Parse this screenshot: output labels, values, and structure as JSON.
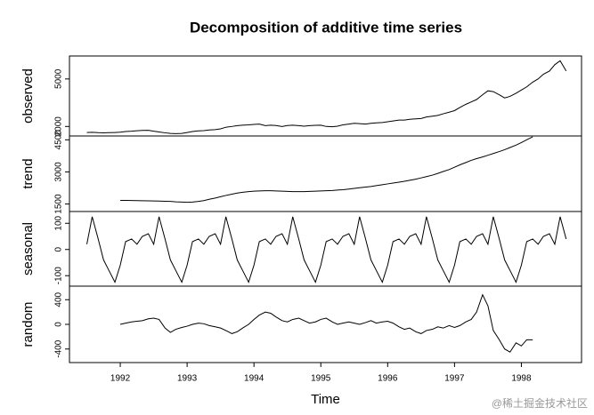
{
  "watermark": "@稀土掘金技术社区",
  "chart_data": [
    {
      "type": "line",
      "title": "Decomposition of additive time series",
      "ylabel": "observed",
      "color": "#000000",
      "xlim": [
        1991.24,
        1998.9
      ],
      "ylim": [
        1400,
        6450
      ],
      "yticks": [
        2000,
        5000
      ],
      "x": [
        1991.5,
        1991.58,
        1991.67,
        1991.75,
        1991.83,
        1991.92,
        1992,
        1992.08,
        1992.17,
        1992.25,
        1992.33,
        1992.42,
        1992.5,
        1992.58,
        1992.67,
        1992.75,
        1992.83,
        1992.92,
        1993,
        1993.08,
        1993.17,
        1993.25,
        1993.33,
        1993.42,
        1993.5,
        1993.58,
        1993.67,
        1993.75,
        1993.83,
        1993.92,
        1994,
        1994.08,
        1994.17,
        1994.25,
        1994.33,
        1994.42,
        1994.5,
        1994.58,
        1994.67,
        1994.75,
        1994.83,
        1994.92,
        1995,
        1995.08,
        1995.17,
        1995.25,
        1995.33,
        1995.42,
        1995.5,
        1995.58,
        1995.67,
        1995.75,
        1995.83,
        1995.92,
        1996,
        1996.08,
        1996.17,
        1996.25,
        1996.33,
        1996.42,
        1996.5,
        1996.58,
        1996.67,
        1996.75,
        1996.83,
        1996.92,
        1997,
        1997.08,
        1997.17,
        1997.25,
        1997.33,
        1997.42,
        1997.5,
        1997.58,
        1997.67,
        1997.75,
        1997.83,
        1997.92,
        1998,
        1998.08,
        1998.17,
        1998.25,
        1998.33,
        1998.42,
        1998.5,
        1998.58,
        1998.67
      ],
      "values": [
        1620,
        1630,
        1610,
        1600,
        1610,
        1620,
        1640,
        1680,
        1700,
        1730,
        1750,
        1760,
        1700,
        1650,
        1600,
        1560,
        1550,
        1560,
        1620,
        1680,
        1720,
        1740,
        1780,
        1800,
        1850,
        1950,
        2000,
        2050,
        2080,
        2100,
        2130,
        2150,
        2050,
        2080,
        2060,
        2000,
        2060,
        2080,
        2050,
        2020,
        2050,
        2070,
        2080,
        2000,
        1980,
        2020,
        2100,
        2150,
        2200,
        2180,
        2150,
        2200,
        2230,
        2250,
        2300,
        2350,
        2400,
        2400,
        2450,
        2480,
        2500,
        2600,
        2650,
        2700,
        2800,
        2900,
        3000,
        3200,
        3400,
        3550,
        3700,
        4000,
        4250,
        4200,
        4000,
        3800,
        3900,
        4100,
        4300,
        4500,
        4800,
        5000,
        5300,
        5500,
        5900,
        6150,
        5500
      ]
    },
    {
      "type": "line",
      "ylabel": "trend",
      "color": "#000000",
      "xlim": [
        1991.24,
        1998.9
      ],
      "ylim": [
        1150,
        4680
      ],
      "yticks": [
        1500,
        3000,
        4500
      ],
      "x": [
        1991.5,
        1991.58,
        1991.67,
        1991.75,
        1991.83,
        1991.92,
        1992,
        1992.08,
        1992.17,
        1992.25,
        1992.33,
        1992.42,
        1992.5,
        1992.58,
        1992.67,
        1992.75,
        1992.83,
        1992.92,
        1993,
        1993.08,
        1993.17,
        1993.25,
        1993.33,
        1993.42,
        1993.5,
        1993.58,
        1993.67,
        1993.75,
        1993.83,
        1993.92,
        1994,
        1994.08,
        1994.17,
        1994.25,
        1994.33,
        1994.42,
        1994.5,
        1994.58,
        1994.67,
        1994.75,
        1994.83,
        1994.92,
        1995,
        1995.08,
        1995.17,
        1995.25,
        1995.33,
        1995.42,
        1995.5,
        1995.58,
        1995.67,
        1995.75,
        1995.83,
        1995.92,
        1996,
        1996.08,
        1996.17,
        1996.25,
        1996.33,
        1996.42,
        1996.5,
        1996.58,
        1996.67,
        1996.75,
        1996.83,
        1996.92,
        1997,
        1997.08,
        1997.17,
        1997.25,
        1997.33,
        1997.42,
        1997.5,
        1997.58,
        1997.67,
        1997.75,
        1997.83,
        1997.92,
        1998,
        1998.08,
        1998.17,
        1998.25,
        1998.33,
        1998.42,
        1998.5,
        1998.58,
        1998.67
      ],
      "values": [
        null,
        null,
        null,
        null,
        null,
        null,
        1670,
        1670,
        1665,
        1660,
        1655,
        1650,
        1645,
        1640,
        1630,
        1620,
        1600,
        1590,
        1580,
        1590,
        1620,
        1660,
        1720,
        1780,
        1840,
        1900,
        1960,
        2010,
        2050,
        2080,
        2100,
        2110,
        2120,
        2120,
        2110,
        2100,
        2090,
        2080,
        2080,
        2080,
        2090,
        2100,
        2110,
        2120,
        2130,
        2150,
        2170,
        2200,
        2230,
        2260,
        2290,
        2320,
        2360,
        2400,
        2440,
        2480,
        2520,
        2560,
        2610,
        2660,
        2720,
        2780,
        2850,
        2930,
        3020,
        3110,
        3220,
        3330,
        3440,
        3540,
        3620,
        3700,
        3780,
        3860,
        3950,
        4040,
        4140,
        4250,
        4370,
        4500,
        4640,
        null,
        null,
        null,
        null,
        null,
        null
      ]
    },
    {
      "type": "line",
      "ylabel": "seasonal",
      "color": "#000000",
      "xlim": [
        1991.24,
        1998.9
      ],
      "ylim": [
        -140,
        145
      ],
      "yticks": [
        -100,
        0,
        100
      ],
      "x": [
        1991.5,
        1991.58,
        1991.67,
        1991.75,
        1991.83,
        1991.92,
        1992,
        1992.08,
        1992.17,
        1992.25,
        1992.33,
        1992.42,
        1992.5,
        1992.58,
        1992.67,
        1992.75,
        1992.83,
        1992.92,
        1993,
        1993.08,
        1993.17,
        1993.25,
        1993.33,
        1993.42,
        1993.5,
        1993.58,
        1993.67,
        1993.75,
        1993.83,
        1993.92,
        1994,
        1994.08,
        1994.17,
        1994.25,
        1994.33,
        1994.42,
        1994.5,
        1994.58,
        1994.67,
        1994.75,
        1994.83,
        1994.92,
        1995,
        1995.08,
        1995.17,
        1995.25,
        1995.33,
        1995.42,
        1995.5,
        1995.58,
        1995.67,
        1995.75,
        1995.83,
        1995.92,
        1996,
        1996.08,
        1996.17,
        1996.25,
        1996.33,
        1996.42,
        1996.5,
        1996.58,
        1996.67,
        1996.75,
        1996.83,
        1996.92,
        1997,
        1997.08,
        1997.17,
        1997.25,
        1997.33,
        1997.42,
        1997.5,
        1997.58,
        1997.67,
        1997.75,
        1997.83,
        1997.92,
        1998,
        1998.08,
        1998.17,
        1998.25,
        1998.33,
        1998.42,
        1998.5,
        1998.58,
        1998.67
      ],
      "values": [
        20,
        125,
        40,
        -40,
        -80,
        -125,
        -60,
        30,
        40,
        20,
        50,
        60,
        20,
        125,
        40,
        -40,
        -80,
        -125,
        -60,
        30,
        40,
        20,
        50,
        60,
        20,
        125,
        40,
        -40,
        -80,
        -125,
        -60,
        30,
        40,
        20,
        50,
        60,
        20,
        125,
        40,
        -40,
        -80,
        -125,
        -60,
        30,
        40,
        20,
        50,
        60,
        20,
        125,
        40,
        -40,
        -80,
        -125,
        -60,
        30,
        40,
        20,
        50,
        60,
        20,
        125,
        40,
        -40,
        -80,
        -125,
        -60,
        30,
        40,
        20,
        50,
        60,
        20,
        125,
        40,
        -40,
        -80,
        -125,
        -60,
        30,
        40,
        20,
        50,
        60,
        20,
        125,
        40
      ]
    },
    {
      "type": "line",
      "ylabel": "random",
      "xlabel": "Time",
      "color": "#000000",
      "xlim": [
        1991.24,
        1998.9
      ],
      "xticks": [
        1992,
        1993,
        1994,
        1995,
        1996,
        1997,
        1998
      ],
      "ylim": [
        -620,
        620
      ],
      "yticks": [
        -400,
        0,
        400
      ],
      "x": [
        1991.5,
        1991.58,
        1991.67,
        1991.75,
        1991.83,
        1991.92,
        1992,
        1992.08,
        1992.17,
        1992.25,
        1992.33,
        1992.42,
        1992.5,
        1992.58,
        1992.67,
        1992.75,
        1992.83,
        1992.92,
        1993,
        1993.08,
        1993.17,
        1993.25,
        1993.33,
        1993.42,
        1993.5,
        1993.58,
        1993.67,
        1993.75,
        1993.83,
        1993.92,
        1994,
        1994.08,
        1994.17,
        1994.25,
        1994.33,
        1994.42,
        1994.5,
        1994.58,
        1994.67,
        1994.75,
        1994.83,
        1994.92,
        1995,
        1995.08,
        1995.17,
        1995.25,
        1995.33,
        1995.42,
        1995.5,
        1995.58,
        1995.67,
        1995.75,
        1995.83,
        1995.92,
        1996,
        1996.08,
        1996.17,
        1996.25,
        1996.33,
        1996.42,
        1996.5,
        1996.58,
        1996.67,
        1996.75,
        1996.83,
        1996.92,
        1997,
        1997.08,
        1997.17,
        1997.25,
        1997.33,
        1997.42,
        1997.5,
        1997.58,
        1997.67,
        1997.75,
        1997.83,
        1997.92,
        1998,
        1998.08,
        1998.17,
        1998.25,
        1998.33,
        1998.42,
        1998.5,
        1998.58,
        1998.67
      ],
      "values": [
        null,
        null,
        null,
        null,
        null,
        null,
        0,
        20,
        40,
        50,
        60,
        90,
        100,
        80,
        -60,
        -130,
        -80,
        -50,
        -30,
        0,
        20,
        10,
        -20,
        -40,
        -60,
        -100,
        -150,
        -120,
        -60,
        0,
        80,
        150,
        200,
        180,
        120,
        60,
        40,
        80,
        100,
        60,
        20,
        40,
        80,
        100,
        40,
        0,
        20,
        40,
        20,
        0,
        30,
        60,
        20,
        40,
        50,
        20,
        -40,
        -80,
        -60,
        -120,
        -150,
        -100,
        -80,
        -40,
        -60,
        -20,
        -50,
        -20,
        40,
        80,
        200,
        480,
        300,
        -100,
        -250,
        -400,
        -450,
        -300,
        -350,
        -250,
        -250,
        null,
        null,
        null,
        null,
        null,
        null
      ]
    }
  ]
}
